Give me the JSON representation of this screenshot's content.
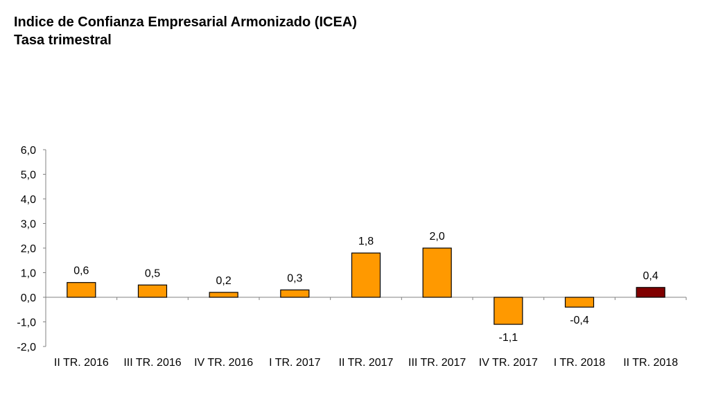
{
  "chart_data": {
    "type": "bar",
    "title": "Indice de Confianza Empresarial Armonizado (ICEA)",
    "subtitle": "Tasa trimestral",
    "xlabel": "",
    "ylabel": "",
    "categories": [
      "II TR. 2016",
      "III TR. 2016",
      "IV TR. 2016",
      "I TR. 2017",
      "II TR. 2017",
      "III TR. 2017",
      "IV TR. 2017",
      "I TR. 2018",
      "II TR. 2018"
    ],
    "values": [
      0.6,
      0.5,
      0.2,
      0.3,
      1.8,
      2.0,
      -1.1,
      -0.4,
      0.4
    ],
    "data_labels": [
      "0,6",
      "0,5",
      "0,2",
      "0,3",
      "1,8",
      "2,0",
      "-1,1",
      "-0,4",
      "0,4"
    ],
    "ylim": [
      -2.0,
      6.0
    ],
    "yticks": [
      6.0,
      5.0,
      4.0,
      3.0,
      2.0,
      1.0,
      0.0,
      -1.0,
      -2.0
    ],
    "ytick_labels": [
      "6,0",
      "5,0",
      "4,0",
      "3,0",
      "2,0",
      "1,0",
      "0,0",
      "-1,0",
      "-2,0"
    ],
    "grid": false,
    "legend": "none",
    "colors": {
      "bar": "#FF9900",
      "highlight": "#800000",
      "highlight_index": 8,
      "bar_edge": "#000000",
      "axis": "#808080"
    }
  }
}
